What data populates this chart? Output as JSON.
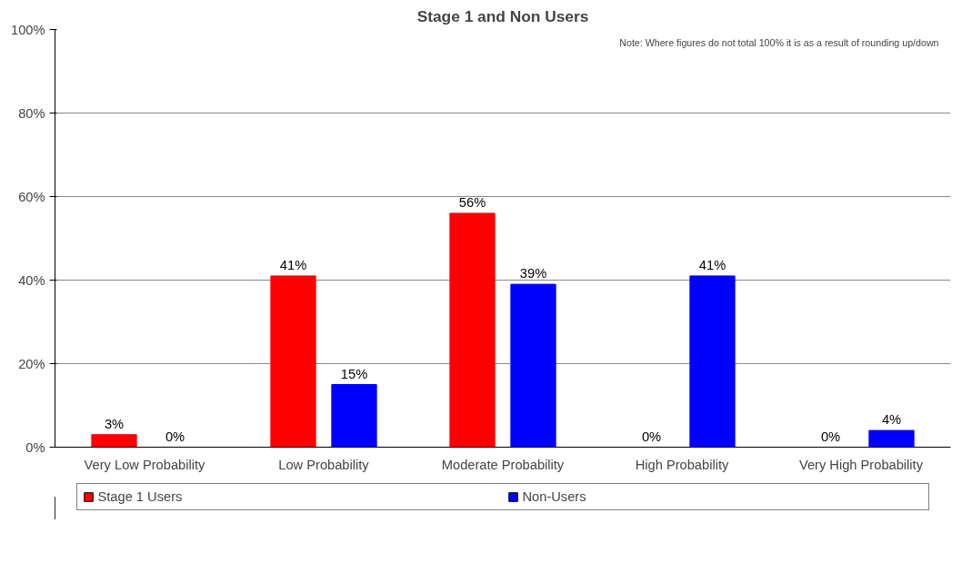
{
  "chart_data": {
    "type": "bar",
    "title": "Stage 1 and Non Users",
    "categories": [
      "Very Low Probability",
      "Low Probability",
      "Moderate Probability",
      "High Probability",
      "Very High Probability"
    ],
    "series": [
      {
        "name": "Stage 1 Users",
        "color": "#ff0000",
        "values": [
          3,
          41,
          56,
          0,
          0
        ],
        "value_labels": [
          "3%",
          "41%",
          "56%",
          "0%",
          "0%"
        ]
      },
      {
        "name": "Non-Users",
        "color": "#0000ff",
        "values": [
          0,
          15,
          39,
          41,
          4
        ],
        "value_labels": [
          "0%",
          "15%",
          "39%",
          "41%",
          "4%"
        ]
      }
    ],
    "ylim": [
      0,
      100
    ],
    "yticks": [
      {
        "value": 0,
        "label": "0%"
      },
      {
        "value": 20,
        "label": "20%"
      },
      {
        "value": 40,
        "label": "40%"
      },
      {
        "value": 60,
        "label": "60%"
      },
      {
        "value": 80,
        "label": "80%"
      },
      {
        "value": 100,
        "label": "100%"
      }
    ],
    "grid": "y",
    "legend": "bottom",
    "annotations": [
      "Note: Where figures do not total 100%  it is as a result of rounding up/down"
    ]
  }
}
